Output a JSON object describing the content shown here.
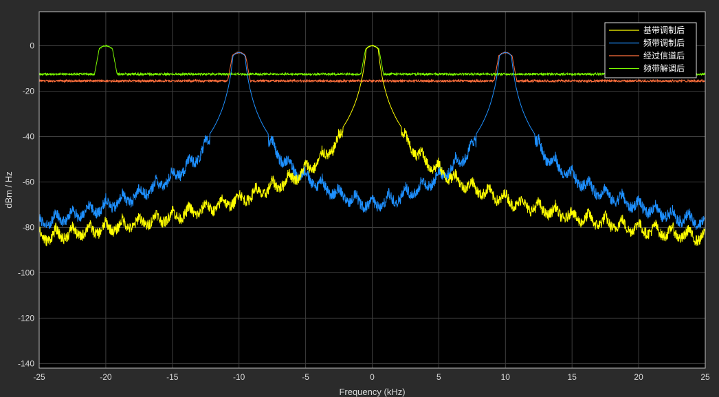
{
  "chart_data": {
    "type": "line",
    "title": "",
    "xlabel": "Frequency (kHz)",
    "ylabel": "dBm / Hz",
    "xlim": [
      -25,
      25
    ],
    "ylim": [
      -142,
      15
    ],
    "xticks": [
      -25,
      -20,
      -15,
      -10,
      -5,
      0,
      5,
      10,
      15,
      20,
      25
    ],
    "yticks": [
      -140,
      -120,
      -100,
      -80,
      -60,
      -40,
      -20,
      0
    ],
    "grid": true,
    "legend_position": "top-right",
    "series": [
      {
        "name": "基带调制后",
        "color": "#ffff00",
        "kind": "psd_peaks",
        "carriers": [
          {
            "center": 0,
            "peak": 0
          }
        ],
        "floor": -103,
        "shoulder": -92
      },
      {
        "name": "频带调制后",
        "color": "#1e90ff",
        "kind": "psd_peaks",
        "carriers": [
          {
            "center": -10,
            "peak": -3
          },
          {
            "center": 10,
            "peak": -3
          }
        ],
        "floor": -101,
        "midpoint": -95
      },
      {
        "name": "经过信道后",
        "color": "#ff6f3c",
        "kind": "flat_with_peaks",
        "level": -15.5,
        "carriers": [
          {
            "center": -10,
            "peak": -3
          },
          {
            "center": 10,
            "peak": -3
          }
        ]
      },
      {
        "name": "频带解调后",
        "color": "#7cfc00",
        "kind": "flat_with_peaks",
        "level": -12.5,
        "carriers": [
          {
            "center": -20,
            "peak": 0
          },
          {
            "center": 0,
            "peak": 0
          }
        ]
      }
    ]
  }
}
